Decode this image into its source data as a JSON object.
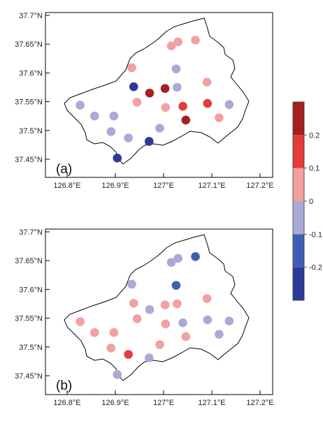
{
  "colorbar": {
    "bins": [
      "#2d3a96",
      "#3f5fb3",
      "#aaaad8",
      "#f2a0a0",
      "#e43b3b",
      "#a61f1f"
    ],
    "labels": [
      "-0.2",
      "-0.1",
      "0",
      "0.1",
      "0.2"
    ]
  },
  "panels": [
    {
      "label": "(a)",
      "x_ticks": [
        "126.8°E",
        "126.9°E",
        "127°E",
        "127.1°E",
        "127.2°E"
      ],
      "y_ticks": [
        "37.45°N",
        "37.5°N",
        "37.55°N",
        "37.6°N",
        "37.65°N",
        "37.7°N"
      ],
      "stations": [
        {
          "lon": 127.016,
          "lat": 37.647,
          "color": "#f2a0a0"
        },
        {
          "lon": 127.03,
          "lat": 37.654,
          "color": "#f2a0a0"
        },
        {
          "lon": 127.066,
          "lat": 37.657,
          "color": "#f2a0a0"
        },
        {
          "lon": 126.934,
          "lat": 37.609,
          "color": "#f2a0a0"
        },
        {
          "lon": 127.026,
          "lat": 37.607,
          "color": "#aaaad8"
        },
        {
          "lon": 127.09,
          "lat": 37.584,
          "color": "#f2a0a0"
        },
        {
          "lon": 126.938,
          "lat": 37.576,
          "color": "#2d3a96"
        },
        {
          "lon": 126.971,
          "lat": 37.565,
          "color": "#a61f1f"
        },
        {
          "lon": 127.003,
          "lat": 37.573,
          "color": "#a61f1f"
        },
        {
          "lon": 127.028,
          "lat": 37.575,
          "color": "#aaaad8"
        },
        {
          "lon": 126.827,
          "lat": 37.544,
          "color": "#aaaad8"
        },
        {
          "lon": 126.945,
          "lat": 37.549,
          "color": "#f2a0a0"
        },
        {
          "lon": 127.004,
          "lat": 37.54,
          "color": "#f2a0a0"
        },
        {
          "lon": 127.04,
          "lat": 37.542,
          "color": "#e43b3b"
        },
        {
          "lon": 127.091,
          "lat": 37.547,
          "color": "#e43b3b"
        },
        {
          "lon": 127.136,
          "lat": 37.545,
          "color": "#aaaad8"
        },
        {
          "lon": 126.857,
          "lat": 37.525,
          "color": "#aaaad8"
        },
        {
          "lon": 126.897,
          "lat": 37.525,
          "color": "#aaaad8"
        },
        {
          "lon": 127.115,
          "lat": 37.522,
          "color": "#f2a0a0"
        },
        {
          "lon": 127.046,
          "lat": 37.518,
          "color": "#a61f1f"
        },
        {
          "lon": 126.891,
          "lat": 37.498,
          "color": "#aaaad8"
        },
        {
          "lon": 126.992,
          "lat": 37.504,
          "color": "#aaaad8"
        },
        {
          "lon": 126.927,
          "lat": 37.487,
          "color": "#aaaad8"
        },
        {
          "lon": 126.97,
          "lat": 37.481,
          "color": "#2d3a96"
        },
        {
          "lon": 126.904,
          "lat": 37.452,
          "color": "#2d3a96"
        }
      ]
    },
    {
      "label": "(b)",
      "x_ticks": [
        "126.8°E",
        "126.9°E",
        "127°E",
        "127.1°E",
        "127.2°E"
      ],
      "y_ticks": [
        "37.45°N",
        "37.5°N",
        "37.55°N",
        "37.6°N",
        "37.65°N",
        "37.7°N"
      ],
      "stations": [
        {
          "lon": 127.016,
          "lat": 37.647,
          "color": "#aaaad8"
        },
        {
          "lon": 127.03,
          "lat": 37.654,
          "color": "#aaaad8"
        },
        {
          "lon": 127.066,
          "lat": 37.657,
          "color": "#3f5fb3"
        },
        {
          "lon": 126.934,
          "lat": 37.609,
          "color": "#aaaad8"
        },
        {
          "lon": 127.026,
          "lat": 37.607,
          "color": "#3f5fb3"
        },
        {
          "lon": 127.09,
          "lat": 37.584,
          "color": "#f2a0a0"
        },
        {
          "lon": 126.938,
          "lat": 37.576,
          "color": "#f2a0a0"
        },
        {
          "lon": 126.971,
          "lat": 37.565,
          "color": "#aaaad8"
        },
        {
          "lon": 127.003,
          "lat": 37.573,
          "color": "#f2a0a0"
        },
        {
          "lon": 127.028,
          "lat": 37.575,
          "color": "#f2a0a0"
        },
        {
          "lon": 126.827,
          "lat": 37.544,
          "color": "#f2a0a0"
        },
        {
          "lon": 126.945,
          "lat": 37.549,
          "color": "#f2a0a0"
        },
        {
          "lon": 127.004,
          "lat": 37.54,
          "color": "#f2a0a0"
        },
        {
          "lon": 127.04,
          "lat": 37.542,
          "color": "#aaaad8"
        },
        {
          "lon": 127.091,
          "lat": 37.547,
          "color": "#aaaad8"
        },
        {
          "lon": 127.136,
          "lat": 37.545,
          "color": "#aaaad8"
        },
        {
          "lon": 126.857,
          "lat": 37.525,
          "color": "#f2a0a0"
        },
        {
          "lon": 126.897,
          "lat": 37.525,
          "color": "#f2a0a0"
        },
        {
          "lon": 127.115,
          "lat": 37.522,
          "color": "#aaaad8"
        },
        {
          "lon": 127.046,
          "lat": 37.518,
          "color": "#f2a0a0"
        },
        {
          "lon": 126.891,
          "lat": 37.498,
          "color": "#f2a0a0"
        },
        {
          "lon": 126.992,
          "lat": 37.504,
          "color": "#f2a0a0"
        },
        {
          "lon": 126.927,
          "lat": 37.487,
          "color": "#e43b3b"
        },
        {
          "lon": 126.97,
          "lat": 37.481,
          "color": "#aaaad8"
        },
        {
          "lon": 126.904,
          "lat": 37.452,
          "color": "#aaaad8"
        }
      ]
    }
  ]
}
